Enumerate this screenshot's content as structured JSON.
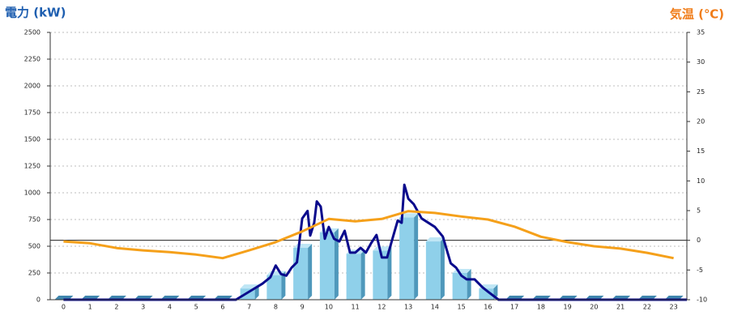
{
  "chart_data": {
    "type": "bar",
    "y_label": "電力 (kW)",
    "y2_label": "気温 (℃)",
    "categories": [
      "0",
      "1",
      "2",
      "3",
      "4",
      "5",
      "6",
      "7",
      "8",
      "9",
      "10",
      "11",
      "12",
      "13",
      "14",
      "15",
      "16",
      "17",
      "18",
      "19",
      "20",
      "21",
      "22",
      "23"
    ],
    "ylim": [
      0,
      2500
    ],
    "yticks": [
      0,
      250,
      500,
      750,
      1000,
      1250,
      1500,
      1750,
      2000,
      2250,
      2500
    ],
    "y2lim": [
      -10,
      35
    ],
    "y2ticks": [
      -10,
      -5,
      0,
      5,
      10,
      15,
      20,
      25,
      30,
      35
    ],
    "grid": true,
    "y2_zero_line": true,
    "series": [
      {
        "type": "bar",
        "color": "#8fd0ea",
        "values": [
          0,
          0,
          0,
          0,
          0,
          0,
          0,
          105,
          230,
          485,
          630,
          430,
          460,
          770,
          545,
          250,
          105,
          0,
          0,
          0,
          0,
          0,
          0,
          0
        ]
      },
      {
        "type": "line",
        "color": "#0a0a8c",
        "x": [
          0,
          6.5,
          7.0,
          7.5,
          7.8,
          8.0,
          8.2,
          8.4,
          8.6,
          8.8,
          9.0,
          9.2,
          9.3,
          9.45,
          9.55,
          9.7,
          9.85,
          10.0,
          10.2,
          10.4,
          10.6,
          10.8,
          11.0,
          11.2,
          11.4,
          11.6,
          11.8,
          12.0,
          12.2,
          12.4,
          12.6,
          12.75,
          12.85,
          13.0,
          13.2,
          13.5,
          14.0,
          14.3,
          14.6,
          14.8,
          15.0,
          15.2,
          15.5,
          15.8,
          16.0,
          16.4,
          23.5
        ],
        "values": [
          0,
          0,
          75,
          150,
          210,
          320,
          240,
          225,
          300,
          350,
          760,
          830,
          600,
          720,
          920,
          870,
          570,
          680,
          570,
          545,
          645,
          440,
          440,
          485,
          440,
          530,
          605,
          395,
          395,
          570,
          740,
          720,
          1075,
          945,
          895,
          760,
          680,
          590,
          340,
          300,
          225,
          190,
          190,
          115,
          75,
          0,
          0
        ]
      },
      {
        "type": "line",
        "axis": "y2",
        "color": "#f5a01a",
        "values": [
          -0.2,
          -0.5,
          -1.3,
          -1.7,
          -2.0,
          -2.4,
          -3.0,
          -1.7,
          -0.3,
          1.5,
          3.6,
          3.2,
          3.6,
          4.9,
          4.6,
          4.0,
          3.5,
          2.3,
          0.6,
          -0.3,
          -1.0,
          -1.4,
          -2.1,
          -3.0
        ]
      }
    ]
  }
}
